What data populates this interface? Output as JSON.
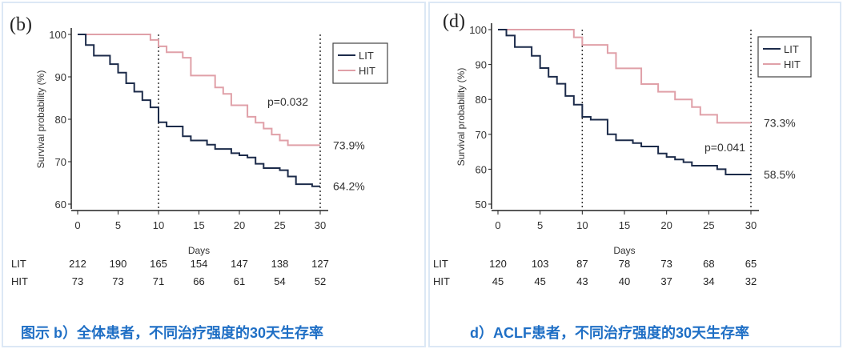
{
  "chart_data": [
    {
      "type": "line",
      "panel_label": "(b)",
      "caption": "图示  b）全体患者，不同治疗强度的30天生存率",
      "xlabel": "Days",
      "ylabel": "Survival probability (%)",
      "xlim": [
        0,
        30
      ],
      "ylim": [
        60,
        100
      ],
      "xticks": [
        0,
        5,
        10,
        15,
        20,
        25,
        30
      ],
      "yticks": [
        60,
        70,
        80,
        90,
        100
      ],
      "vlines": [
        10,
        30
      ],
      "annotation": "p=0.032",
      "legend": {
        "position": "top-right",
        "entries": [
          "LIT",
          "HIT"
        ]
      },
      "series": [
        {
          "name": "LIT",
          "color": "#1c2b4a",
          "end_label": "64.2%",
          "steps": [
            [
              0,
              100
            ],
            [
              1,
              97.5
            ],
            [
              2,
              95
            ],
            [
              4,
              93
            ],
            [
              5,
              91
            ],
            [
              6,
              88.5
            ],
            [
              7,
              86.5
            ],
            [
              8,
              84.5
            ],
            [
              9,
              82.8
            ],
            [
              10,
              79.3
            ],
            [
              11,
              78.3
            ],
            [
              13,
              76
            ],
            [
              14,
              75
            ],
            [
              16,
              74
            ],
            [
              17,
              73
            ],
            [
              19,
              72
            ],
            [
              20,
              71.5
            ],
            [
              21,
              71
            ],
            [
              22,
              69.5
            ],
            [
              23,
              68.5
            ],
            [
              25,
              68
            ],
            [
              26,
              66.5
            ],
            [
              27,
              64.7
            ],
            [
              29,
              64.2
            ],
            [
              30,
              64.2
            ]
          ]
        },
        {
          "name": "HIT",
          "color": "#e0a0a8",
          "end_label": "73.9%",
          "steps": [
            [
              0,
              100
            ],
            [
              9,
              98.7
            ],
            [
              10,
              97.2
            ],
            [
              11,
              95.8
            ],
            [
              13,
              94.5
            ],
            [
              14,
              90.3
            ],
            [
              17,
              87.5
            ],
            [
              18,
              86
            ],
            [
              19,
              83.3
            ],
            [
              21,
              80.6
            ],
            [
              22,
              79.2
            ],
            [
              23,
              77.8
            ],
            [
              24,
              76.4
            ],
            [
              25,
              75
            ],
            [
              26,
              73.9
            ],
            [
              30,
              73.9
            ]
          ]
        }
      ],
      "risk_table": {
        "rows": [
          {
            "label": "LIT",
            "values": [
              "212",
              "190",
              "165",
              "154",
              "147",
              "138",
              "127"
            ]
          },
          {
            "label": "HIT",
            "values": [
              "73",
              "73",
              "71",
              "66",
              "61",
              "54",
              "52"
            ]
          }
        ]
      }
    },
    {
      "type": "line",
      "panel_label": "(d)",
      "caption": "d）ACLF患者，不同治疗强度的30天生存率",
      "xlabel": "Days",
      "ylabel": "Survival probability (%)",
      "xlim": [
        0,
        30
      ],
      "ylim": [
        50,
        100
      ],
      "xticks": [
        0,
        5,
        10,
        15,
        20,
        25,
        30
      ],
      "yticks": [
        50,
        60,
        70,
        80,
        90,
        100
      ],
      "vlines": [
        10,
        30
      ],
      "annotation": "p=0.041",
      "legend": {
        "position": "top-right",
        "entries": [
          "LIT",
          "HIT"
        ]
      },
      "series": [
        {
          "name": "LIT",
          "color": "#1c2b4a",
          "end_label": "58.5%",
          "steps": [
            [
              0,
              100
            ],
            [
              1,
              98.3
            ],
            [
              2,
              95
            ],
            [
              4,
              92.5
            ],
            [
              5,
              89
            ],
            [
              6,
              86.5
            ],
            [
              7,
              84.5
            ],
            [
              8,
              81
            ],
            [
              9,
              78.5
            ],
            [
              10,
              75
            ],
            [
              11,
              74.2
            ],
            [
              13,
              70
            ],
            [
              14,
              68.3
            ],
            [
              16,
              67.5
            ],
            [
              17,
              66.5
            ],
            [
              19,
              64.5
            ],
            [
              20,
              63.5
            ],
            [
              21,
              62.8
            ],
            [
              22,
              62
            ],
            [
              23,
              61
            ],
            [
              26,
              60
            ],
            [
              27,
              58.5
            ],
            [
              30,
              58.5
            ]
          ]
        },
        {
          "name": "HIT",
          "color": "#e0a0a8",
          "end_label": "73.3%",
          "steps": [
            [
              0,
              100
            ],
            [
              9,
              97.8
            ],
            [
              10,
              95.6
            ],
            [
              13,
              93.3
            ],
            [
              14,
              88.9
            ],
            [
              17,
              84.4
            ],
            [
              19,
              82.2
            ],
            [
              21,
              80
            ],
            [
              23,
              77.8
            ],
            [
              24,
              75.6
            ],
            [
              26,
              73.3
            ],
            [
              30,
              73.3
            ]
          ]
        }
      ],
      "risk_table": {
        "rows": [
          {
            "label": "LIT",
            "values": [
              "120",
              "103",
              "87",
              "78",
              "73",
              "68",
              "65"
            ]
          },
          {
            "label": "HIT",
            "values": [
              "45",
              "45",
              "43",
              "40",
              "37",
              "34",
              "32"
            ]
          }
        ]
      }
    }
  ]
}
